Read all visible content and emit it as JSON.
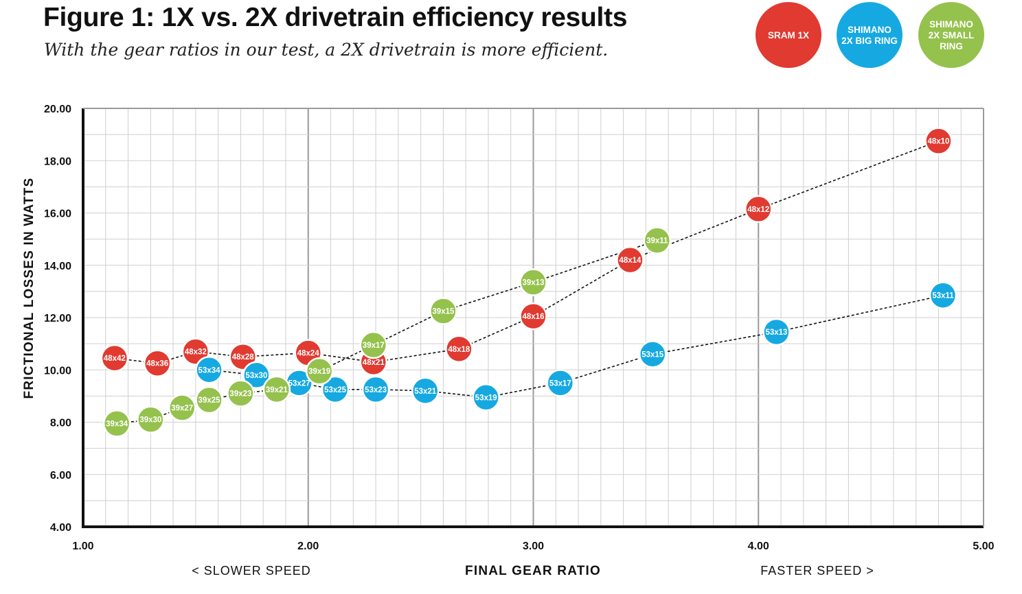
{
  "title": "Figure 1: 1X vs. 2X drivetrain efficiency results",
  "subtitle": "With the gear ratios in our test, a 2X drivetrain is more efficient.",
  "annotations": {
    "slower": "< SLOWER SPEED",
    "faster": "FASTER SPEED >"
  },
  "chart_data": {
    "type": "scatter",
    "xlabel": "FINAL GEAR RATIO",
    "ylabel": "FRICTIONAL LOSSES IN WATTS",
    "xlim": [
      1.0,
      5.0
    ],
    "ylim": [
      4.0,
      20.0
    ],
    "x_ticks": [
      "1.00",
      "2.00",
      "3.00",
      "4.00",
      "5.00"
    ],
    "y_ticks": [
      "4.00",
      "6.00",
      "8.00",
      "10.00",
      "12.00",
      "14.00",
      "16.00",
      "18.00",
      "20.00"
    ],
    "grid": true,
    "legend_position": "top-right",
    "series": [
      {
        "name": "SRAM 1X",
        "legend_lines": [
          "SRAM 1X"
        ],
        "color": "#e03a31",
        "points": [
          {
            "label": "48x42",
            "x": 1.14,
            "y": 10.45
          },
          {
            "label": "48x36",
            "x": 1.33,
            "y": 10.25
          },
          {
            "label": "48x32",
            "x": 1.5,
            "y": 10.7
          },
          {
            "label": "48x28",
            "x": 1.71,
            "y": 10.5
          },
          {
            "label": "48x24",
            "x": 2.0,
            "y": 10.65
          },
          {
            "label": "48x21",
            "x": 2.29,
            "y": 10.3
          },
          {
            "label": "48x18",
            "x": 2.67,
            "y": 10.8
          },
          {
            "label": "48x16",
            "x": 3.0,
            "y": 12.05
          },
          {
            "label": "48x14",
            "x": 3.43,
            "y": 14.2
          },
          {
            "label": "48x12",
            "x": 4.0,
            "y": 16.15
          },
          {
            "label": "48x10",
            "x": 4.8,
            "y": 18.75
          }
        ]
      },
      {
        "name": "SHIMANO 2X BIG RING",
        "legend_lines": [
          "SHIMANO",
          "2X BIG RING"
        ],
        "color": "#16a9e1",
        "points": [
          {
            "label": "53x34",
            "x": 1.56,
            "y": 10.0
          },
          {
            "label": "53x30",
            "x": 1.77,
            "y": 9.8
          },
          {
            "label": "53x27",
            "x": 1.96,
            "y": 9.5
          },
          {
            "label": "53x25",
            "x": 2.12,
            "y": 9.25
          },
          {
            "label": "53x23",
            "x": 2.3,
            "y": 9.25
          },
          {
            "label": "53x21",
            "x": 2.52,
            "y": 9.2
          },
          {
            "label": "53x19",
            "x": 2.79,
            "y": 8.95
          },
          {
            "label": "53x17",
            "x": 3.12,
            "y": 9.5
          },
          {
            "label": "53x15",
            "x": 3.53,
            "y": 10.6
          },
          {
            "label": "53x13",
            "x": 4.08,
            "y": 11.45
          },
          {
            "label": "53x11",
            "x": 4.82,
            "y": 12.85
          }
        ]
      },
      {
        "name": "SHIMANO 2X SMALL RING",
        "legend_lines": [
          "SHIMANO",
          "2X SMALL",
          "RING"
        ],
        "color": "#95c14d",
        "points": [
          {
            "label": "39x34",
            "x": 1.15,
            "y": 7.95
          },
          {
            "label": "39x30",
            "x": 1.3,
            "y": 8.1
          },
          {
            "label": "39x27",
            "x": 1.44,
            "y": 8.55
          },
          {
            "label": "39x25",
            "x": 1.56,
            "y": 8.85
          },
          {
            "label": "39x23",
            "x": 1.7,
            "y": 9.1
          },
          {
            "label": "39x21",
            "x": 1.86,
            "y": 9.25
          },
          {
            "label": "39x19",
            "x": 2.05,
            "y": 9.95
          },
          {
            "label": "39x17",
            "x": 2.29,
            "y": 10.95
          },
          {
            "label": "39x15",
            "x": 2.6,
            "y": 12.25
          },
          {
            "label": "39x13",
            "x": 3.0,
            "y": 13.35
          },
          {
            "label": "39x11",
            "x": 3.55,
            "y": 14.95
          }
        ]
      }
    ]
  }
}
